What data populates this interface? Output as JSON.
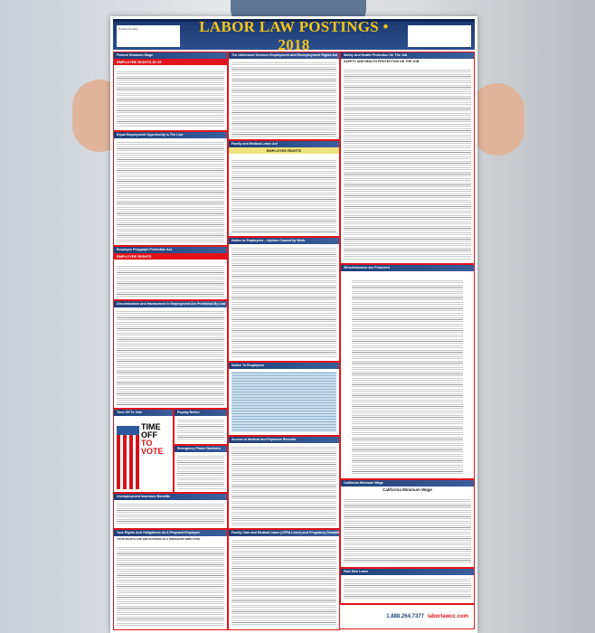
{
  "poster": {
    "title": "LABOR LAW POSTINGS • 2018",
    "header_left": "Product Number",
    "panels": [
      {
        "id": "fmw",
        "title": "Federal Minimum Wage",
        "subtitle": "EMPLOYEE RIGHTS",
        "value": "$7.25"
      },
      {
        "id": "eeo",
        "title": "Equal Employment Opportunity Is The Law"
      },
      {
        "id": "eppa",
        "title": "Employee Polygraph Protection Act",
        "subtitle": "EMPLOYEE RIGHTS"
      },
      {
        "id": "disc",
        "title": "Discrimination And Harassment In Employment Are Prohibited By Law"
      },
      {
        "id": "vote",
        "title": "Time Off To Vote",
        "subtitle_a": "TIME OFF",
        "subtitle_b": "TO VOTE"
      },
      {
        "id": "payday",
        "title": "Payday Notice"
      },
      {
        "id": "emerg",
        "title": "Emergency Phone Numbers"
      },
      {
        "id": "ui",
        "title": "Unemployment Insurance Benefits"
      },
      {
        "id": "preg",
        "title": "Your Rights And Obligations As A Pregnant Employee",
        "subtitle": "YOUR RIGHTS AND OBLIGATIONS AS A PREGNANT EMPLOYEE"
      },
      {
        "id": "userra",
        "title": "The Uniformed Services Employment And Reemployment Rights Act"
      },
      {
        "id": "fmla",
        "title": "Family and Medical Leave Act",
        "subtitle": "EMPLOYEE RIGHTS"
      },
      {
        "id": "injury",
        "title": "Notice to Employees – Injuries Caused by Work"
      },
      {
        "id": "nte",
        "title": "Notice To Employees"
      },
      {
        "id": "access",
        "title": "Access to Medical and Exposure Records"
      },
      {
        "id": "cfra",
        "title": "Family Care and Medical Leave (CFRA Leave) and Pregnancy Disability Leave"
      },
      {
        "id": "safety",
        "title": "Safety And Health Protection On The Job",
        "subtitle": "SAFETY AND HEALTH PROTECTION ON THE JOB"
      },
      {
        "id": "whistle",
        "title": "Whistleblowers Are Protected"
      },
      {
        "id": "camw",
        "title": "California Minimum Wage",
        "subtitle": "California Minimum Wage"
      },
      {
        "id": "sick",
        "title": "Paid Sick Leave"
      }
    ],
    "footer": {
      "phone": "1.888.264.7377",
      "logo": "laborlawcc.com"
    }
  }
}
